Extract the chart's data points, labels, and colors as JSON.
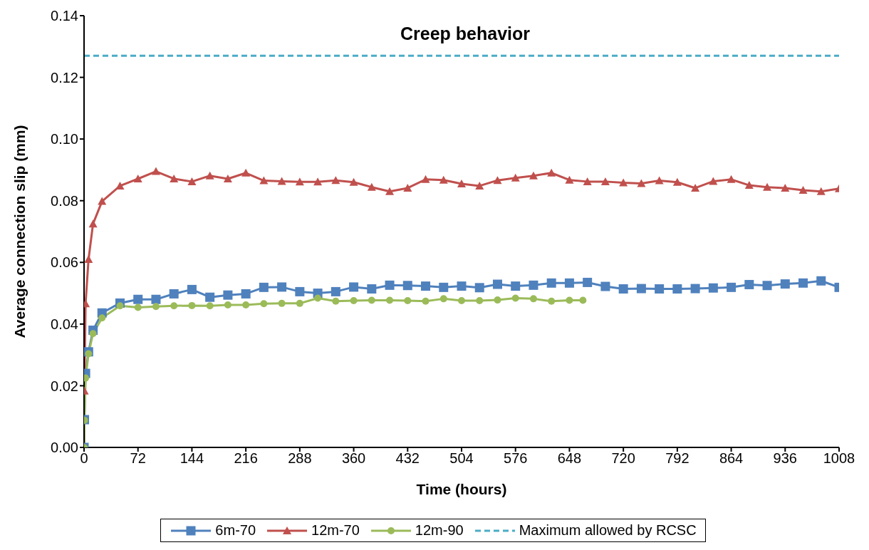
{
  "chart_data": {
    "type": "line",
    "title": "Creep behavior",
    "xlabel": "Time (hours)",
    "ylabel": "Average connection slip (mm)",
    "xlim": [
      0,
      1008
    ],
    "xticks": [
      0,
      72,
      144,
      216,
      288,
      360,
      432,
      504,
      576,
      648,
      720,
      792,
      864,
      936,
      1008
    ],
    "ylim": [
      0,
      0.14
    ],
    "yticks": [
      {
        "value": 0,
        "label": "0.00"
      },
      {
        "value": 0.02,
        "label": "0.02"
      },
      {
        "value": 0.04,
        "label": "0.04"
      },
      {
        "value": 0.06,
        "label": "0.06"
      },
      {
        "value": 0.08,
        "label": "0.08"
      },
      {
        "value": 0.1,
        "label": "0.10"
      },
      {
        "value": 0.12,
        "label": "0.12"
      },
      {
        "value": 0.14,
        "label": "0.14"
      }
    ],
    "grid": false,
    "legend": "bottom",
    "line_style": "solid",
    "series": [
      {
        "name": "6m-70",
        "color": "#4f81bd",
        "marker": "square",
        "x": [
          0,
          0.5,
          2,
          6,
          12,
          24,
          48,
          72,
          96,
          120,
          144,
          168,
          192,
          216,
          240,
          264,
          288,
          312,
          336,
          360,
          384,
          408,
          432,
          456,
          480,
          504,
          528,
          552,
          576,
          600,
          624,
          648,
          672,
          696,
          720,
          744,
          768,
          792,
          816,
          840,
          864,
          888,
          912,
          936,
          960,
          984,
          1008
        ],
        "values": [
          0,
          0.009,
          0.024,
          0.031,
          0.038,
          0.0436,
          0.0468,
          0.048,
          0.048,
          0.0498,
          0.0512,
          0.0487,
          0.0494,
          0.0498,
          0.0519,
          0.052,
          0.0505,
          0.05,
          0.0505,
          0.052,
          0.0514,
          0.0526,
          0.0525,
          0.0523,
          0.0519,
          0.0523,
          0.0518,
          0.0529,
          0.0523,
          0.0526,
          0.0533,
          0.0533,
          0.0535,
          0.0522,
          0.0514,
          0.0515,
          0.0514,
          0.0514,
          0.0515,
          0.0517,
          0.0519,
          0.0528,
          0.0525,
          0.053,
          0.0533,
          0.054,
          0.0519
        ]
      },
      {
        "name": "12m-70",
        "color": "#c0504d",
        "marker": "triangle",
        "x": [
          0,
          0.5,
          2,
          6,
          12,
          24,
          48,
          72,
          96,
          120,
          144,
          168,
          192,
          216,
          240,
          264,
          288,
          312,
          336,
          360,
          384,
          408,
          432,
          456,
          480,
          504,
          528,
          552,
          576,
          600,
          624,
          648,
          672,
          696,
          720,
          744,
          768,
          792,
          816,
          840,
          864,
          888,
          912,
          936,
          960,
          984,
          1008
        ],
        "values": [
          0,
          0.0183,
          0.0466,
          0.061,
          0.0725,
          0.0798,
          0.0848,
          0.0871,
          0.0895,
          0.0871,
          0.0862,
          0.0881,
          0.0871,
          0.089,
          0.0865,
          0.0863,
          0.0861,
          0.0861,
          0.0866,
          0.086,
          0.0844,
          0.083,
          0.0841,
          0.0869,
          0.0867,
          0.0855,
          0.0848,
          0.0866,
          0.0874,
          0.0881,
          0.089,
          0.0867,
          0.0862,
          0.0862,
          0.0858,
          0.0856,
          0.0865,
          0.086,
          0.0841,
          0.0863,
          0.0869,
          0.085,
          0.0844,
          0.0841,
          0.0834,
          0.083,
          0.0839
        ]
      },
      {
        "name": "12m-90",
        "color": "#9bbb59",
        "marker": "circle",
        "x": [
          0,
          0.5,
          2,
          6,
          12,
          24,
          48,
          72,
          96,
          120,
          144,
          168,
          192,
          216,
          240,
          264,
          288,
          312,
          336,
          360,
          384,
          408,
          432,
          456,
          480,
          504,
          528,
          552,
          576,
          600,
          624,
          648,
          666
        ],
        "values": [
          0,
          0.0088,
          0.0225,
          0.0304,
          0.0369,
          0.042,
          0.0459,
          0.0454,
          0.0457,
          0.0459,
          0.046,
          0.0459,
          0.0462,
          0.0462,
          0.0466,
          0.0467,
          0.0467,
          0.0484,
          0.0474,
          0.0476,
          0.0477,
          0.0477,
          0.0476,
          0.0474,
          0.0482,
          0.0476,
          0.0476,
          0.0478,
          0.0484,
          0.0482,
          0.0474,
          0.0477,
          0.0477
        ]
      }
    ],
    "ref_lines": [
      {
        "axis": "y",
        "value": 0.127,
        "label": "Maximum allowed by RCSC",
        "color": "#4bacc6",
        "line_style": "dashed"
      }
    ]
  }
}
